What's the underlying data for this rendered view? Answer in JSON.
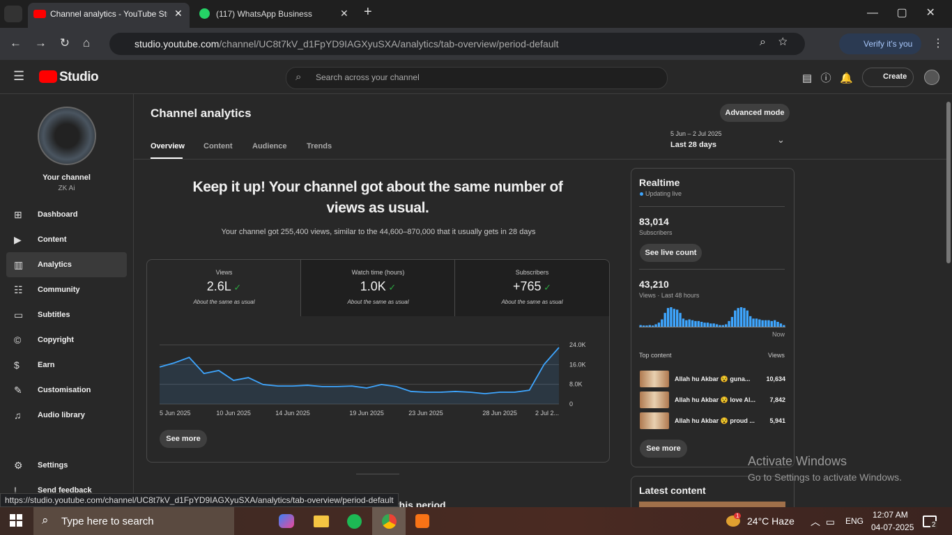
{
  "browser": {
    "tabs": [
      "Channel analytics - YouTube Stu",
      "(117) WhatsApp Business"
    ],
    "url_host": "studio.youtube.com",
    "url_path": "/channel/UC8t7kV_d1FpYD9IAGXyuSXA/analytics/tab-overview/period-default",
    "profile_button": "Verify it's you",
    "status_url": "https://studio.youtube.com/channel/UC8t7kV_d1FpYD9IAGXyuSXA/analytics/tab-overview/period-default"
  },
  "header": {
    "logo": "Studio",
    "search_placeholder": "Search across your channel",
    "create": "Create"
  },
  "sidebar": {
    "channel_label": "Your channel",
    "channel_name": "ZK Ai",
    "nav": [
      "Dashboard",
      "Content",
      "Analytics",
      "Community",
      "Subtitles",
      "Copyright",
      "Earn",
      "Customisation",
      "Audio library"
    ],
    "footer": [
      "Settings",
      "Send feedback"
    ]
  },
  "analytics": {
    "title": "Channel analytics",
    "advanced_mode": "Advanced mode",
    "tabs": [
      "Overview",
      "Content",
      "Audience",
      "Trends"
    ],
    "date_range": "5 Jun – 2 Jul 2025",
    "period": "Last 28 days",
    "headline": "Keep it up! Your channel got about the same number of views as usual.",
    "summary": "Your channel got 255,400 views, similar to the 44,600–870,000 that it usually gets in 28 days",
    "metrics": [
      {
        "label": "Views",
        "value": "2.6L",
        "note": "About the same as usual"
      },
      {
        "label": "Watch time (hours)",
        "value": "1.0K",
        "note": "About the same as usual"
      },
      {
        "label": "Subscribers",
        "value": "+765",
        "note": "About the same as usual"
      }
    ],
    "see_more": "See more",
    "next_section": "this period"
  },
  "chart_data": [
    {
      "type": "line",
      "categories": [
        "5 Jun 2025",
        null,
        null,
        null,
        null,
        "10 Jun 2025",
        null,
        null,
        null,
        "14 Jun 2025",
        null,
        null,
        null,
        null,
        "19 Jun 2025",
        null,
        null,
        null,
        "23 Jun 2025",
        null,
        null,
        null,
        null,
        "28 Jun 2025",
        null,
        null,
        null,
        "2 Jul 2..."
      ],
      "values": [
        15000,
        16700,
        18900,
        12400,
        13600,
        9600,
        10700,
        7900,
        7300,
        7300,
        7600,
        7100,
        7100,
        7300,
        6500,
        7900,
        7100,
        5100,
        4800,
        4800,
        5100,
        4800,
        4200,
        4800,
        4800,
        5600,
        16100,
        22900
      ],
      "ylim": [
        0,
        24000
      ],
      "yticks": [
        0,
        {
          "value": 8000,
          "label": "8.0K"
        },
        {
          "value": 16000,
          "label": "16.0K"
        },
        {
          "value": 24000,
          "label": "24.0K"
        }
      ],
      "color": "#3ea6ff",
      "grid": true
    },
    {
      "type": "bar",
      "values": [
        200,
        150,
        150,
        200,
        150,
        300,
        500,
        900,
        1700,
        2300,
        2400,
        2200,
        2100,
        1700,
        1000,
        800,
        900,
        800,
        700,
        700,
        600,
        500,
        500,
        400,
        400,
        300,
        200,
        200,
        300,
        700,
        1200,
        2000,
        2300,
        2400,
        2300,
        2000,
        1300,
        1000,
        1000,
        900,
        800,
        800,
        800,
        700,
        800,
        600,
        400,
        200
      ],
      "color": "#3ea6ff"
    }
  ],
  "realtime": {
    "title": "Realtime",
    "status": "Updating live",
    "subscribers": "83,014",
    "subscribers_label": "Subscribers",
    "live_count": "See live count",
    "views": "43,210",
    "views_label": "Views · Last 48 hours",
    "now": "Now",
    "top_content_label": "Top content",
    "views_col": "Views",
    "top_content": [
      {
        "title": "Allah hu Akbar 😵 guna...",
        "views": "10,634"
      },
      {
        "title": "Allah hu Akbar 😵 love Al...",
        "views": "7,842"
      },
      {
        "title": "Allah hu Akbar 😵 proud ...",
        "views": "5,941"
      }
    ],
    "see_more": "See more",
    "latest_content": "Latest content"
  },
  "os": {
    "activation_title": "Activate Windows",
    "activation_text": "Go to Settings to activate Windows.",
    "taskbar_search": "Type here to search",
    "weather_badge": "1",
    "weather": "24°C Haze",
    "language": "ENG",
    "time": "12:07 AM",
    "date": "04-07-2025",
    "notifications": "2"
  }
}
